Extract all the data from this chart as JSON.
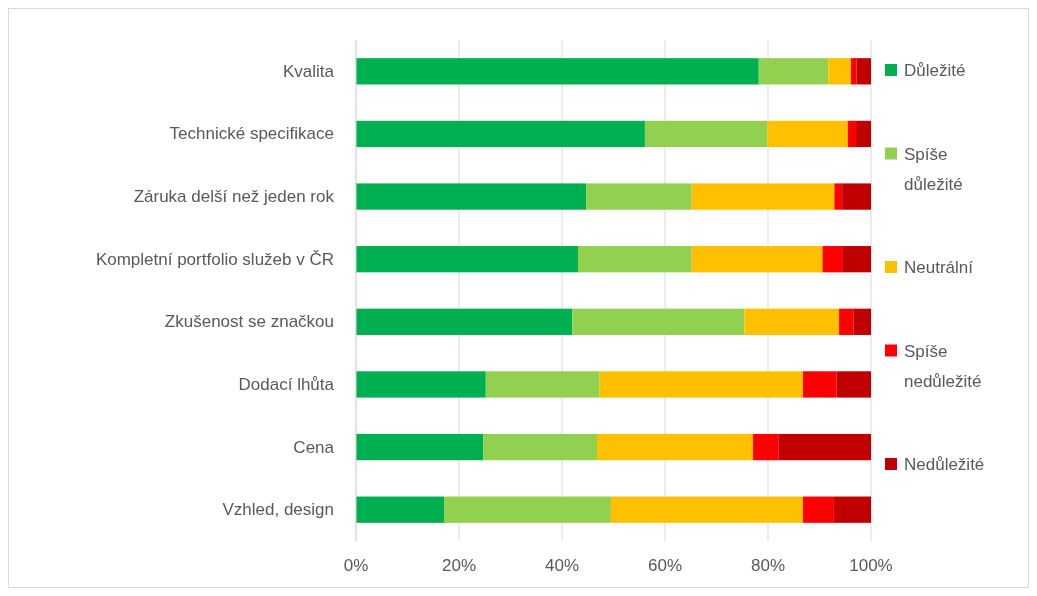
{
  "chart_data": {
    "type": "bar",
    "orientation": "horizontal",
    "stacked": true,
    "categories": [
      "Kvalita",
      "Technické specifikace",
      "Záruka delší než jeden rok",
      "Kompletní portfolio služeb v ČR",
      "Zkušenost se značkou",
      "Dodací lhůta",
      "Cena",
      "Vzhled, design"
    ],
    "series": [
      {
        "name": "Důležité",
        "color": "#00b050",
        "values": [
          78.2,
          56.1,
          44.7,
          43.1,
          42.0,
          25.2,
          24.7,
          17.1
        ]
      },
      {
        "name": "Spíše důležité",
        "color": "#92d050",
        "values": [
          13.5,
          23.8,
          20.5,
          22.1,
          33.4,
          22.1,
          22.1,
          32.4
        ]
      },
      {
        "name": "Neutrální",
        "color": "#ffc000",
        "values": [
          4.4,
          15.6,
          27.7,
          25.4,
          18.4,
          39.5,
          30.3,
          37.3
        ]
      },
      {
        "name": "Spíše nedůležité",
        "color": "#ff0000",
        "values": [
          1.1,
          1.6,
          1.5,
          3.8,
          2.8,
          6.5,
          4.9,
          6.0
        ]
      },
      {
        "name": "Nedůležité",
        "color": "#c00000",
        "values": [
          2.8,
          2.9,
          5.6,
          5.6,
          3.4,
          6.7,
          18.0,
          7.2
        ]
      }
    ],
    "xlim": [
      0,
      100
    ],
    "xticks": [
      {
        "value": 0,
        "label": "0%"
      },
      {
        "value": 20,
        "label": "20%"
      },
      {
        "value": 40,
        "label": "40%"
      },
      {
        "value": 60,
        "label": "60%"
      },
      {
        "value": 80,
        "label": "80%"
      },
      {
        "value": 100,
        "label": "100%"
      }
    ],
    "grid": "x",
    "legend": "right"
  }
}
